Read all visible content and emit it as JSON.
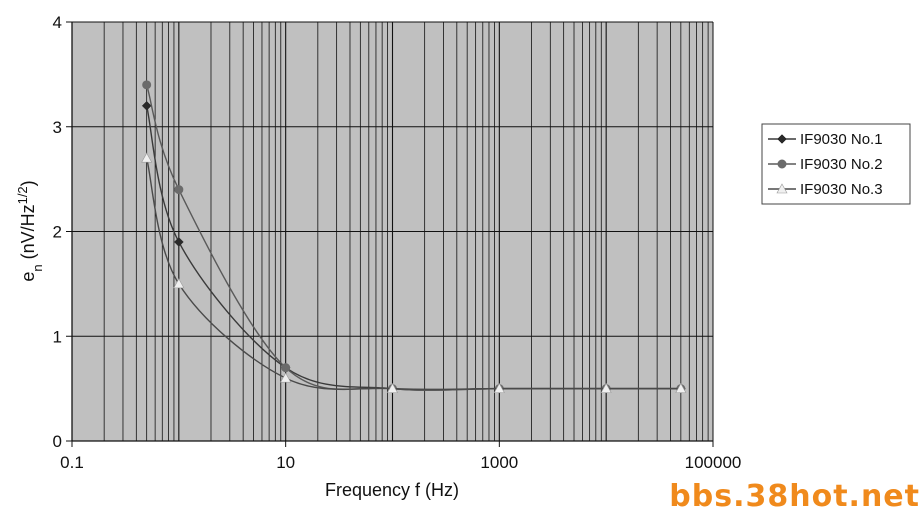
{
  "chart_data": {
    "type": "line",
    "title": "",
    "xlabel": "Frequency f (Hz)",
    "ylabel": {
      "base": "e",
      "sub": "n",
      "rest": " (nV/Hz",
      "sup": "1/2",
      "close": ")"
    },
    "xscale": "log",
    "xlim": [
      0.1,
      100000
    ],
    "ylim": [
      0,
      4
    ],
    "xticks": [
      "0.1",
      "10",
      "1000",
      "100000"
    ],
    "yticks": [
      "0",
      "1",
      "2",
      "3",
      "4"
    ],
    "grid": true,
    "plot_background": "#c0c0c0",
    "legend_position": "right",
    "series": [
      {
        "name": "IF9030 No.1",
        "marker": "diamond",
        "color": "#2a2a2a",
        "x": [
          0.5,
          1,
          10,
          100,
          1000,
          10000,
          50000
        ],
        "y": [
          3.2,
          1.9,
          0.7,
          0.5,
          0.5,
          0.5,
          0.5
        ]
      },
      {
        "name": "IF9030 No.2",
        "marker": "circle",
        "color": "#6b6b6b",
        "x": [
          0.5,
          1,
          10,
          100,
          1000,
          10000,
          50000
        ],
        "y": [
          3.4,
          2.4,
          0.7,
          0.5,
          0.5,
          0.5,
          0.5
        ]
      },
      {
        "name": "IF9030 No.3",
        "marker": "triangle",
        "color": "#f0f0f0",
        "x": [
          0.5,
          1,
          10,
          100,
          1000,
          10000,
          50000
        ],
        "y": [
          2.7,
          1.5,
          0.6,
          0.5,
          0.5,
          0.5,
          0.5
        ]
      }
    ]
  },
  "watermark": {
    "text": "bbs.38hot.net",
    "color": "#f08a1c"
  }
}
